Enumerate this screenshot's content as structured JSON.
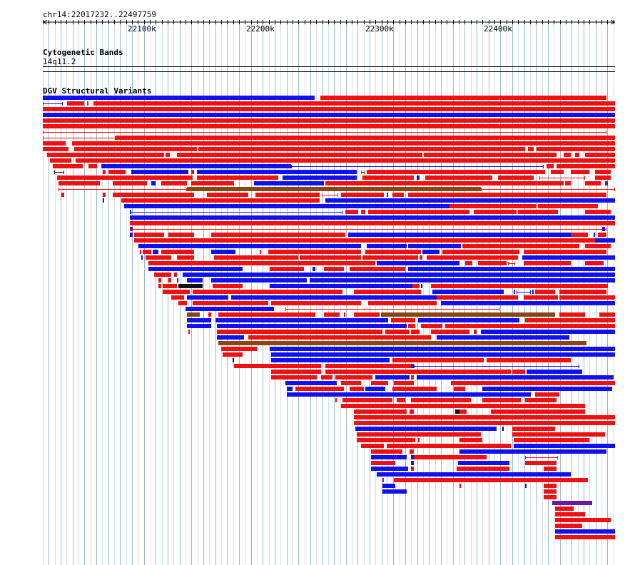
{
  "region": "chr14:22017232..22497759",
  "ruler": {
    "start": 22017232,
    "end": 22497759,
    "ticks": [
      "22100k",
      "22200k",
      "22300k",
      "22400k"
    ],
    "tick_values": [
      22100000,
      22200000,
      22300000,
      22400000
    ]
  },
  "tracks": {
    "cytoband_title": "Cytogenetic Bands",
    "cytoband_label": "14q11.2",
    "dgv_title": "DGV Structural Variants"
  },
  "colors": {
    "loss": "#ee1111",
    "gain": "#1111ee",
    "gain_loss": "#8b4513",
    "inversion": "#6a1a9a",
    "other": "#111111",
    "grid_major": "#9ab8d0",
    "grid_minor": "#cfe0ec"
  }
}
